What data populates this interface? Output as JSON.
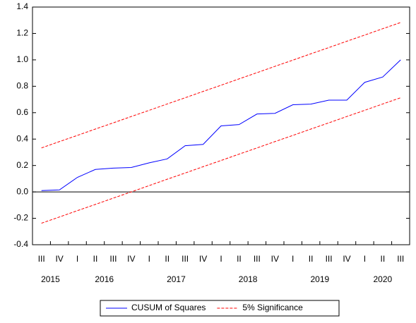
{
  "chart_data": {
    "type": "line",
    "categories": [
      "III",
      "IV",
      "I",
      "II",
      "III",
      "IV",
      "I",
      "II",
      "III",
      "IV",
      "I",
      "II",
      "III",
      "IV",
      "I",
      "II",
      "III",
      "IV",
      "I",
      "II",
      "III"
    ],
    "year_groups": [
      {
        "label": "2015",
        "count": 2
      },
      {
        "label": "2016",
        "count": 4
      },
      {
        "label": "2017",
        "count": 4
      },
      {
        "label": "2018",
        "count": 4
      },
      {
        "label": "2019",
        "count": 4
      },
      {
        "label": "2020",
        "count": 3
      }
    ],
    "series": [
      {
        "name": "CUSUM of Squares",
        "color": "#0000ff",
        "dashed": false,
        "values": [
          0.01,
          0.015,
          0.11,
          0.17,
          0.18,
          0.185,
          0.22,
          0.25,
          0.35,
          0.36,
          0.5,
          0.51,
          0.59,
          0.595,
          0.66,
          0.665,
          0.695,
          0.695,
          0.83,
          0.87,
          1.0
        ]
      },
      {
        "name": "5% Significance",
        "color": "#ff0000",
        "dashed": true,
        "values": [
          0.333,
          0.381,
          0.428,
          0.476,
          0.523,
          0.571,
          0.618,
          0.666,
          0.713,
          0.761,
          0.808,
          0.856,
          0.903,
          0.951,
          0.998,
          1.046,
          1.093,
          1.141,
          1.188,
          1.236,
          1.283
        ],
        "lower": [
          -0.237,
          -0.19,
          -0.142,
          -0.095,
          -0.047,
          0.0,
          0.048,
          0.096,
          0.143,
          0.191,
          0.238,
          0.286,
          0.333,
          0.381,
          0.428,
          0.476,
          0.523,
          0.571,
          0.618,
          0.666,
          0.713
        ]
      }
    ],
    "ylim": [
      -0.4,
      1.4
    ],
    "yticks": [
      1.4,
      1.2,
      {
        "value": 1.0,
        "label": "1.0"
      },
      0.8,
      0.6,
      0.4,
      0.2,
      {
        "value": 0.0,
        "label": "0.0"
      },
      -0.2,
      -0.4
    ],
    "zero_line": true,
    "legend": "bottom"
  }
}
